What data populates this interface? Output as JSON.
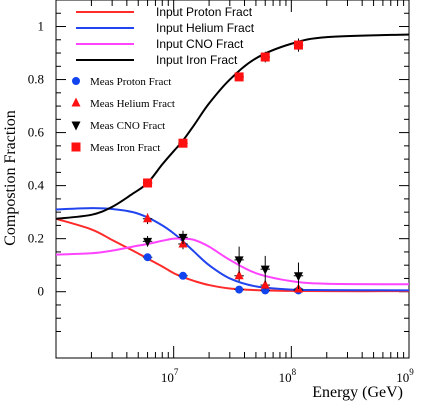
{
  "chart_data": {
    "type": "scatter",
    "xlabel": "Energy (GeV)",
    "ylabel": "Compostion Fraction",
    "x_scale": "log",
    "xlim": [
      1000000,
      1000000000
    ],
    "ylim": [
      -0.25,
      1.1
    ],
    "x_ticks": [
      {
        "value": 10000000,
        "base": "10",
        "exp": "7"
      },
      {
        "value": 100000000,
        "base": "10",
        "exp": "8"
      },
      {
        "value": 1000000000,
        "base": "10",
        "exp": "9"
      }
    ],
    "y_ticks": [
      0,
      0.2,
      0.4,
      0.6,
      0.8,
      1
    ],
    "y_tick_labels": [
      "0",
      "0.2",
      "0.4",
      "0.6",
      "0.8",
      "1"
    ],
    "grid": false,
    "curves": [
      {
        "name": "Input Proton Fract",
        "color": "#ff2a2a",
        "x": [
          1000000,
          2000000,
          3000000,
          4500000,
          6000000,
          8000000,
          10000000,
          12000000,
          15000000,
          20000000,
          30000000,
          50000000,
          100000000,
          200000000,
          1000000000
        ],
        "y": [
          0.275,
          0.235,
          0.195,
          0.155,
          0.125,
          0.095,
          0.07,
          0.055,
          0.04,
          0.025,
          0.012,
          0.006,
          0.003,
          0.002,
          0.002
        ]
      },
      {
        "name": "Input Helium Fract",
        "color": "#2244ee",
        "x": [
          1000000,
          2000000,
          3000000,
          4500000,
          6000000,
          8000000,
          10000000,
          12000000,
          15000000,
          20000000,
          30000000,
          50000000,
          100000000,
          200000000,
          1000000000
        ],
        "y": [
          0.31,
          0.315,
          0.312,
          0.3,
          0.28,
          0.25,
          0.22,
          0.19,
          0.15,
          0.1,
          0.05,
          0.02,
          0.008,
          0.006,
          0.005
        ]
      },
      {
        "name": "Input CNO Fract",
        "color": "#ff44ff",
        "x": [
          1000000,
          2000000,
          3000000,
          4500000,
          6000000,
          8000000,
          10000000,
          12000000,
          15000000,
          20000000,
          30000000,
          50000000,
          100000000,
          200000000,
          1000000000
        ],
        "y": [
          0.14,
          0.145,
          0.155,
          0.17,
          0.18,
          0.192,
          0.2,
          0.2,
          0.195,
          0.17,
          0.12,
          0.07,
          0.04,
          0.03,
          0.028
        ]
      },
      {
        "name": "Input Iron Fract",
        "color": "#000000",
        "x": [
          1000000,
          2000000,
          3000000,
          4500000,
          6000000,
          8000000,
          10000000,
          12000000,
          15000000,
          20000000,
          30000000,
          50000000,
          100000000,
          200000000,
          1000000000
        ],
        "y": [
          0.275,
          0.29,
          0.32,
          0.37,
          0.41,
          0.48,
          0.53,
          0.57,
          0.63,
          0.71,
          0.8,
          0.88,
          0.935,
          0.96,
          0.97
        ]
      }
    ],
    "series": [
      {
        "name": "Meas Proton Fract",
        "marker": "circle",
        "color": "#1144ee",
        "x": [
          6000000,
          12000000,
          36000000,
          60000000,
          115000000
        ],
        "y": [
          0.13,
          0.06,
          0.008,
          0.005,
          0.005
        ],
        "yerr": [
          0.01,
          0.008,
          0.005,
          0.004,
          0.004
        ],
        "xerr_dex": 0.04
      },
      {
        "name": "Meas Helium Fract",
        "marker": "triangle-up",
        "color": "#ff1111",
        "x": [
          6000000,
          12000000,
          36000000,
          60000000,
          115000000
        ],
        "y": [
          0.275,
          0.18,
          0.06,
          0.025,
          0.01
        ],
        "yerr": [
          0.02,
          0.02,
          0.02,
          0.015,
          0.01
        ],
        "xerr_dex": 0.04
      },
      {
        "name": "Meas CNO Fract",
        "marker": "triangle-down",
        "color": "#000000",
        "x": [
          6000000,
          12000000,
          36000000,
          60000000,
          115000000
        ],
        "y": [
          0.19,
          0.205,
          0.12,
          0.085,
          0.06
        ],
        "yerr": [
          0.02,
          0.025,
          0.05,
          0.05,
          0.05
        ],
        "xerr_dex": 0.04
      },
      {
        "name": "Meas Iron Fract",
        "marker": "square",
        "color": "#ff1111",
        "x": [
          6000000,
          12000000,
          36000000,
          60000000,
          115000000
        ],
        "y": [
          0.41,
          0.56,
          0.81,
          0.885,
          0.93
        ],
        "yerr": [
          0.015,
          0.015,
          0.015,
          0.02,
          0.025
        ],
        "xerr_dex": 0.04
      }
    ],
    "legend": {
      "position": "top-left"
    }
  }
}
